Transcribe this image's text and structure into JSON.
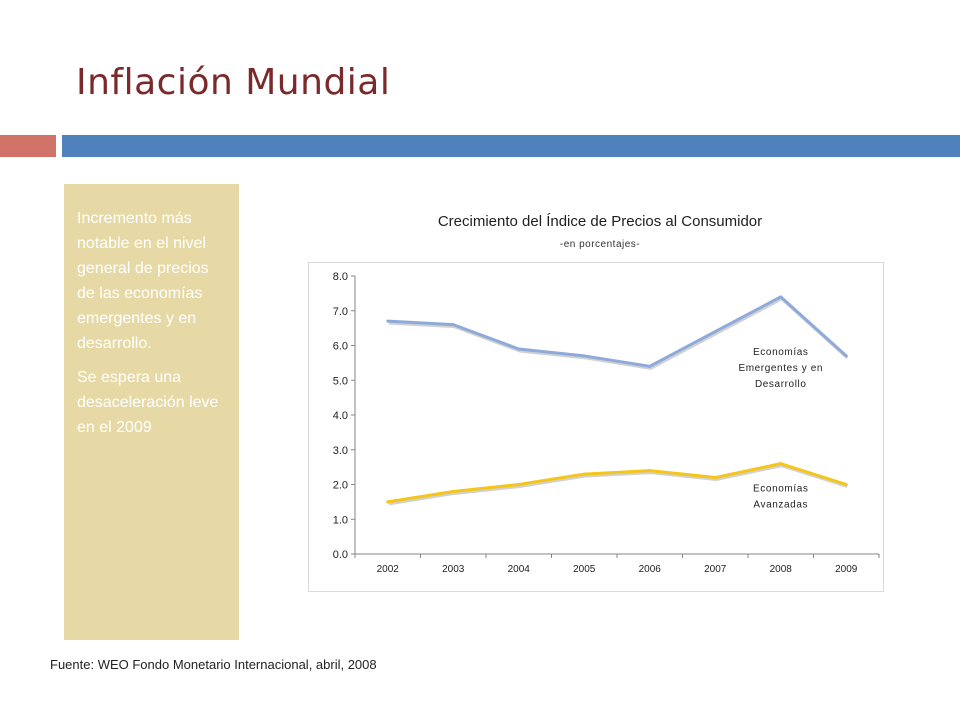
{
  "slide": {
    "title": "Inflación Mundial",
    "source": "Fuente: WEO Fondo Monetario Internacional, abril, 2008"
  },
  "sidebar": {
    "paragraphs": [
      "Incremento más notable en el nivel general de precios de las economías emergentes  y en desarrollo.",
      "Se espera una desaceleración leve en el 2009"
    ]
  },
  "colors": {
    "title": "#7a2a2a",
    "accent_red": "#d07268",
    "accent_blue": "#4f81bd",
    "sidebar_bg": "#e6d9a6",
    "emerging_line": "#8eaadb",
    "advanced_line": "#f5c518"
  },
  "chart_data": {
    "type": "line",
    "title": "Crecimiento del Índice de Precios al Consumidor",
    "subtitle": "-en porcentajes-",
    "categories": [
      "2002",
      "2003",
      "2004",
      "2005",
      "2006",
      "2007",
      "2008",
      "2009"
    ],
    "y_ticks": [
      "0.0",
      "1.0",
      "2.0",
      "3.0",
      "4.0",
      "5.0",
      "6.0",
      "7.0",
      "8.0"
    ],
    "ylim": [
      0,
      8
    ],
    "grid": false,
    "legend": "inline labels",
    "series": [
      {
        "name": "Economías Emergentes y en Desarrollo",
        "label_lines": [
          "Economías",
          "Emergentes y en",
          "Desarrollo"
        ],
        "values": [
          6.7,
          6.6,
          5.9,
          5.7,
          5.4,
          6.4,
          7.4,
          5.7
        ]
      },
      {
        "name": "Economías Avanzadas",
        "label_lines": [
          "Economías",
          "Avanzadas"
        ],
        "values": [
          1.5,
          1.8,
          2.0,
          2.3,
          2.4,
          2.2,
          2.6,
          2.0
        ]
      }
    ]
  }
}
